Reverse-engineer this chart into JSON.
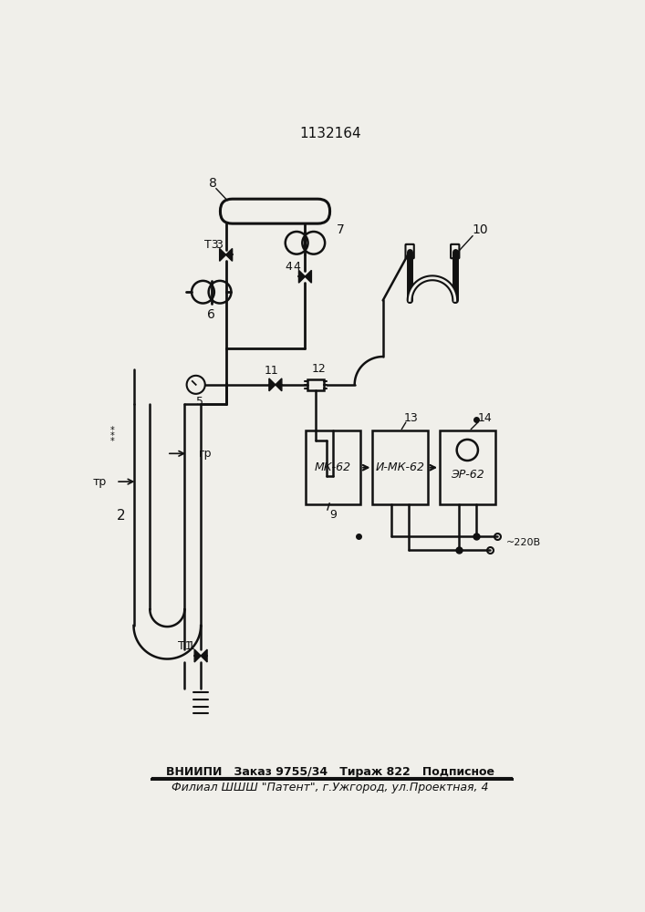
{
  "title": "1132164",
  "footer_line1": "ВНИИПИ   Заказ 9755/34   Тираж 822   Подписное",
  "footer_line2": "Филиал ШШШ \"Патент\", г.Ужгород, ул.Проектная, 4",
  "bg_color": "#f0efea",
  "lc": "#111111"
}
